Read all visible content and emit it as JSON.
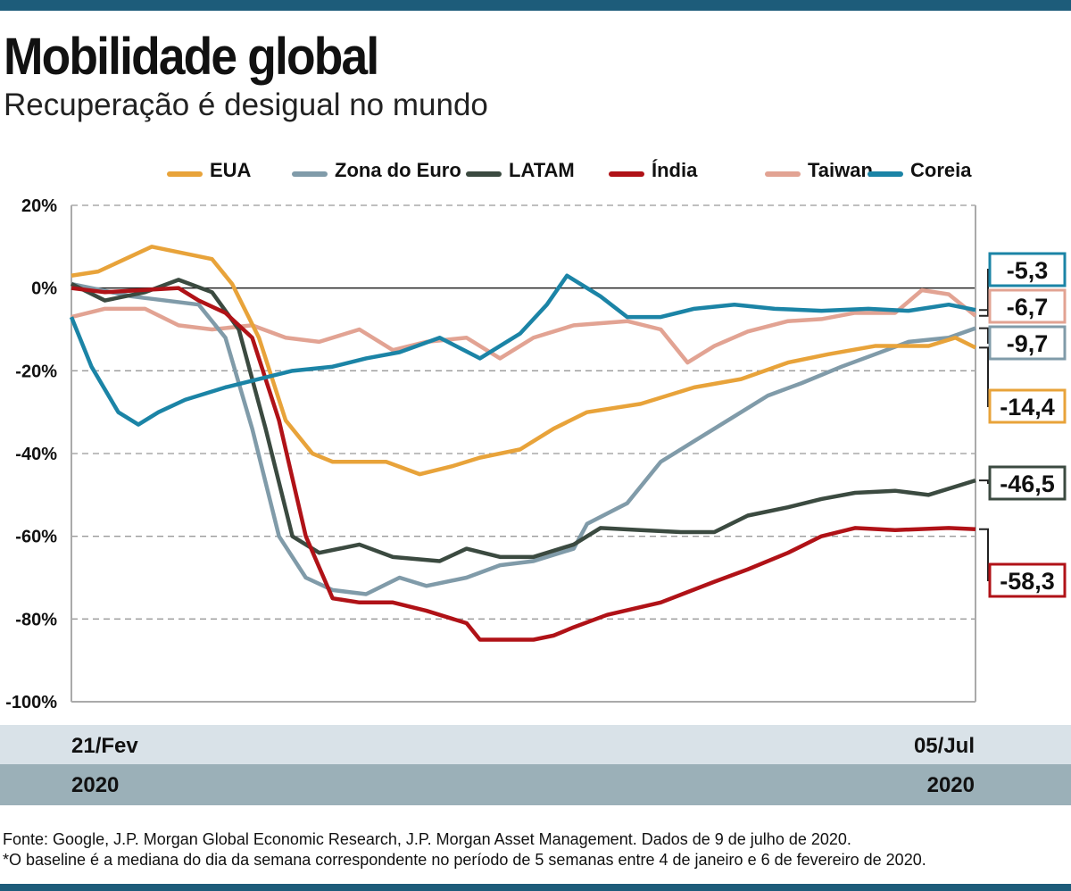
{
  "title": "Mobilidade global",
  "subtitle": "Recuperação é desigual no mundo",
  "chart_data": {
    "type": "line",
    "xlabel": "",
    "ylabel": "",
    "x_range": [
      "21/Fev 2020",
      "05/Jul 2020"
    ],
    "x_unit": "days since 21/Fev",
    "x_ticks": [
      {
        "label": "21/Fev",
        "year": "2020"
      },
      {
        "label": "05/Jul",
        "year": "2020"
      }
    ],
    "ylim": [
      -100,
      20
    ],
    "y_ticks": [
      "20%",
      "0%",
      "-20%",
      "-40%",
      "-60%",
      "-80%",
      "-100%"
    ],
    "grid": "horizontal dashed",
    "legend": "top",
    "series": [
      {
        "name": "EUA",
        "color": "#e8a33a",
        "end_label": "-14,4",
        "points": [
          [
            0,
            3
          ],
          [
            4,
            4
          ],
          [
            12,
            10
          ],
          [
            21,
            7
          ],
          [
            24,
            1
          ],
          [
            28,
            -12
          ],
          [
            32,
            -32
          ],
          [
            36,
            -40
          ],
          [
            39,
            -42
          ],
          [
            47,
            -42
          ],
          [
            52,
            -45
          ],
          [
            57,
            -43
          ],
          [
            61,
            -41
          ],
          [
            67,
            -39
          ],
          [
            72,
            -34
          ],
          [
            77,
            -30
          ],
          [
            85,
            -28
          ],
          [
            93,
            -24
          ],
          [
            100,
            -22
          ],
          [
            107,
            -18
          ],
          [
            113,
            -16
          ],
          [
            120,
            -14
          ],
          [
            128,
            -14
          ],
          [
            132,
            -12
          ],
          [
            135,
            -14.4
          ]
        ]
      },
      {
        "name": "Zona do Euro",
        "color": "#809ba9",
        "end_label": "-9,7",
        "points": [
          [
            0,
            1
          ],
          [
            9,
            -2
          ],
          [
            19,
            -4
          ],
          [
            23,
            -12
          ],
          [
            27,
            -34
          ],
          [
            31,
            -60
          ],
          [
            35,
            -70
          ],
          [
            39,
            -73
          ],
          [
            44,
            -74
          ],
          [
            49,
            -70
          ],
          [
            53,
            -72
          ],
          [
            59,
            -70
          ],
          [
            64,
            -67
          ],
          [
            69,
            -66
          ],
          [
            75,
            -63
          ],
          [
            77,
            -57
          ],
          [
            83,
            -52
          ],
          [
            88,
            -42
          ],
          [
            93,
            -37
          ],
          [
            99,
            -31
          ],
          [
            104,
            -26
          ],
          [
            109,
            -23
          ],
          [
            115,
            -19
          ],
          [
            120,
            -16
          ],
          [
            125,
            -13
          ],
          [
            131,
            -12
          ],
          [
            135,
            -9.7
          ]
        ]
      },
      {
        "name": "LATAM",
        "color": "#3b4a40",
        "end_label": "-46,5",
        "points": [
          [
            0,
            1
          ],
          [
            5,
            -3
          ],
          [
            11,
            -1
          ],
          [
            16,
            2
          ],
          [
            21,
            -1
          ],
          [
            25,
            -10
          ],
          [
            29,
            -34
          ],
          [
            33,
            -60
          ],
          [
            37,
            -64
          ],
          [
            43,
            -62
          ],
          [
            48,
            -65
          ],
          [
            55,
            -66
          ],
          [
            59,
            -63
          ],
          [
            64,
            -65
          ],
          [
            69,
            -65
          ],
          [
            75,
            -62
          ],
          [
            79,
            -58
          ],
          [
            85,
            -58.5
          ],
          [
            91,
            -59
          ],
          [
            96,
            -59
          ],
          [
            101,
            -55
          ],
          [
            107,
            -53
          ],
          [
            112,
            -51
          ],
          [
            117,
            -49.5
          ],
          [
            123,
            -49
          ],
          [
            128,
            -50
          ],
          [
            135,
            -46.5
          ]
        ]
      },
      {
        "name": "Índia",
        "color": "#b01217",
        "end_label": "-58,3",
        "points": [
          [
            0,
            0
          ],
          [
            5,
            -1
          ],
          [
            16,
            0
          ],
          [
            19,
            -3
          ],
          [
            23,
            -6
          ],
          [
            27,
            -12
          ],
          [
            31,
            -32
          ],
          [
            35,
            -60
          ],
          [
            39,
            -75
          ],
          [
            43,
            -76
          ],
          [
            48,
            -76
          ],
          [
            53,
            -78
          ],
          [
            59,
            -81
          ],
          [
            61,
            -85
          ],
          [
            69,
            -85
          ],
          [
            72,
            -84
          ],
          [
            75,
            -82
          ],
          [
            80,
            -79
          ],
          [
            88,
            -76
          ],
          [
            96,
            -71
          ],
          [
            101,
            -68
          ],
          [
            107,
            -64
          ],
          [
            112,
            -60
          ],
          [
            117,
            -58
          ],
          [
            123,
            -58.5
          ],
          [
            131,
            -58
          ],
          [
            135,
            -58.3
          ]
        ]
      },
      {
        "name": "Taiwan",
        "color": "#e2a393",
        "end_label": "-6,7",
        "points": [
          [
            0,
            -7
          ],
          [
            5,
            -5
          ],
          [
            11,
            -5
          ],
          [
            16,
            -9
          ],
          [
            21,
            -10
          ],
          [
            27,
            -9
          ],
          [
            32,
            -12
          ],
          [
            37,
            -13
          ],
          [
            43,
            -10
          ],
          [
            48,
            -15
          ],
          [
            53,
            -13
          ],
          [
            59,
            -12
          ],
          [
            64,
            -17
          ],
          [
            69,
            -12
          ],
          [
            75,
            -9
          ],
          [
            83,
            -8
          ],
          [
            88,
            -10
          ],
          [
            92,
            -18
          ],
          [
            96,
            -14
          ],
          [
            101,
            -10.5
          ],
          [
            107,
            -8
          ],
          [
            112,
            -7.5
          ],
          [
            117,
            -6
          ],
          [
            123,
            -6
          ],
          [
            127,
            -0.5
          ],
          [
            131,
            -1.5
          ],
          [
            135,
            -6.7
          ]
        ]
      },
      {
        "name": "Coreia",
        "color": "#1b84a6",
        "end_label": "-5,3",
        "points": [
          [
            0,
            -7
          ],
          [
            3,
            -19
          ],
          [
            7,
            -30
          ],
          [
            10,
            -33
          ],
          [
            13,
            -30
          ],
          [
            17,
            -27
          ],
          [
            23,
            -24
          ],
          [
            28,
            -22
          ],
          [
            33,
            -20
          ],
          [
            39,
            -19
          ],
          [
            44,
            -17
          ],
          [
            49,
            -15.5
          ],
          [
            55,
            -12
          ],
          [
            61,
            -17
          ],
          [
            67,
            -11
          ],
          [
            71,
            -4
          ],
          [
            74,
            3
          ],
          [
            79,
            -2
          ],
          [
            83,
            -7
          ],
          [
            88,
            -7
          ],
          [
            93,
            -5
          ],
          [
            99,
            -4
          ],
          [
            105,
            -5
          ],
          [
            112,
            -5.5
          ],
          [
            119,
            -5
          ],
          [
            125,
            -5.5
          ],
          [
            131,
            -4
          ],
          [
            135,
            -5.3
          ]
        ]
      }
    ]
  },
  "footer": {
    "source": "Fonte: Google, J.P. Morgan Global Economic Research, J.P. Morgan Asset Management. Dados de 9 de julho de 2020.",
    "note": "*O baseline é a mediana do dia da semana correspondente no período de 5 semanas entre 4 de janeiro e 6 de fevereiro de 2020."
  }
}
